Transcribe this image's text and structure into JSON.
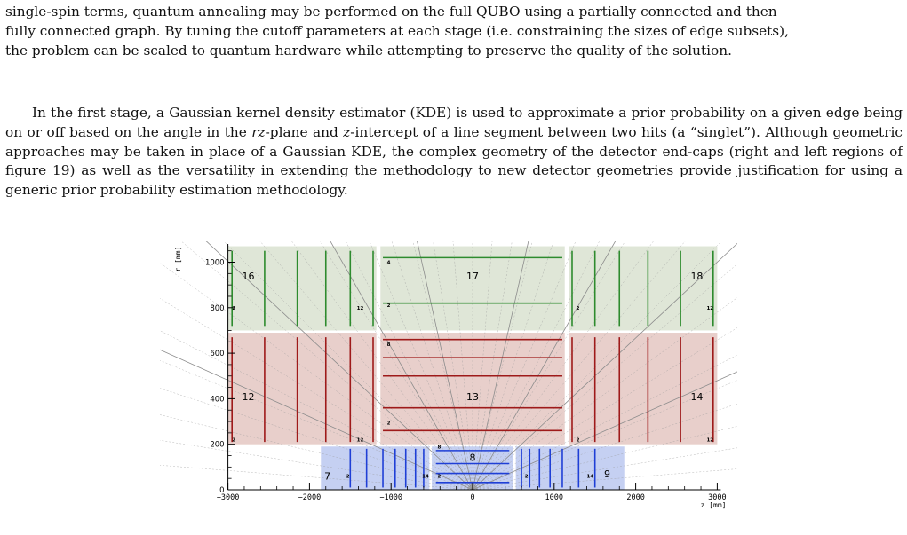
{
  "paragraph1": {
    "lines": [
      "single-spin terms, quantum annealing may be performed on the full QUBO using a partially connected and then",
      "fully connected graph. By tuning the cutoff parameters at each stage (i.e. constraining the sizes of edge subsets),",
      "the problem can be scaled to quantum hardware while attempting to preserve the quality of the solution."
    ]
  },
  "paragraph2": {
    "s1": "In the first stage, a Gaussian kernel density estimator (KDE) is used to approximate a prior probability on a given edge being on or off based on the angle in the ",
    "m1": "rz",
    "s2": "-plane and ",
    "m2": "z",
    "s3": "-intercept of a line segment between two hits (a “singlet”). Although geometric approaches may be taken in place of a Gaussian KDE, the complex geometry of the detector end-caps (right and left regions of figure 19) as well as the versatility in extending the methodology to new detector geometries provide justification for using a generic prior probability estimation methodology."
  },
  "figure": {
    "y_axis_label": "r [mm]",
    "x_axis_label": "z [mm]",
    "y_ticks": [
      "0",
      "200",
      "400",
      "600",
      "800",
      "1000"
    ],
    "x_ticks": [
      "−3000",
      "−2000",
      "−1000",
      "0",
      "1000",
      "2000",
      "3000"
    ],
    "colors": {
      "green": "#2e8b2e",
      "red": "#9e1a1a",
      "blue": "#1f3fd6",
      "green_bg": "#dfe6d7",
      "red_bg": "#e8cfcb",
      "blue_bg": "#c5d0f2"
    },
    "volumes": [
      {
        "id": "16",
        "first": "2",
        "last": "12"
      },
      {
        "id": "17",
        "first": "2",
        "last": "4"
      },
      {
        "id": "18",
        "first": "2",
        "last": "12"
      },
      {
        "id": "12",
        "first": "2",
        "last": "12"
      },
      {
        "id": "13",
        "first": "2",
        "last": "8"
      },
      {
        "id": "14",
        "first": "2",
        "last": "12"
      },
      {
        "id": "7",
        "first": "2",
        "last": "14"
      },
      {
        "id": "8",
        "first": "2",
        "last": "8"
      },
      {
        "id": "9",
        "first": "2",
        "last": "14"
      }
    ]
  }
}
